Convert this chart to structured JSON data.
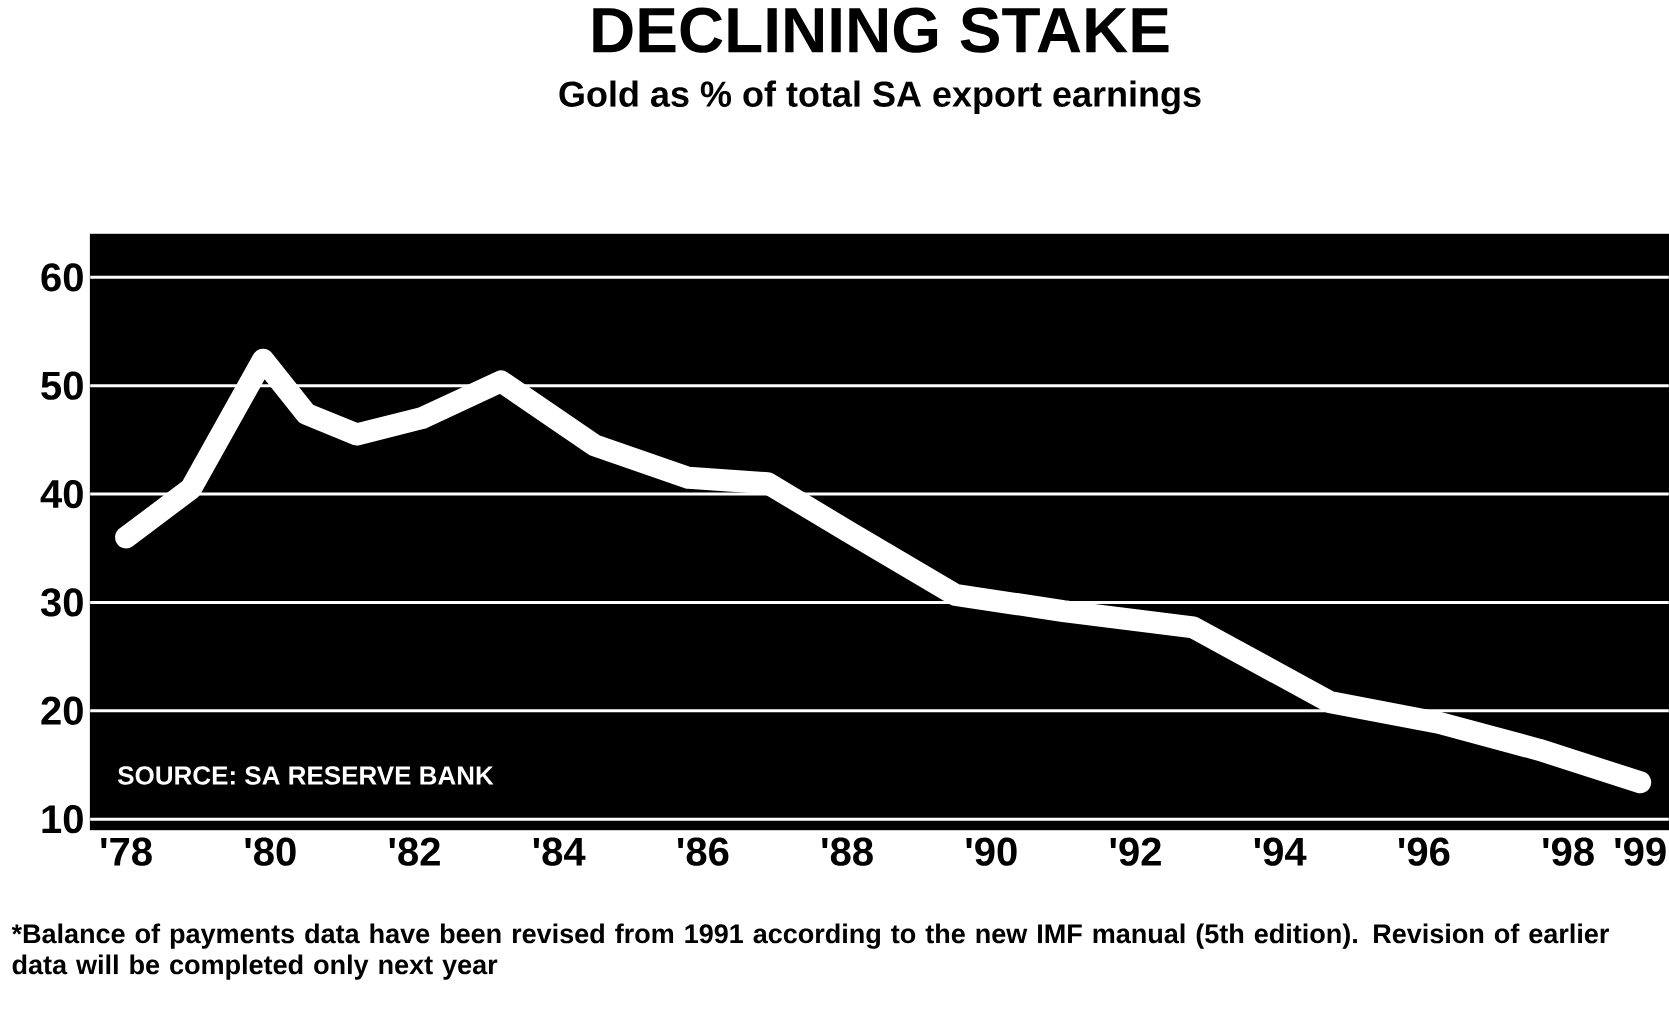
{
  "chart_data": {
    "type": "line",
    "title": "DECLINING STAKE",
    "subtitle": "Gold as % of total SA export earnings",
    "x": [
      1978,
      1978.9,
      1979.9,
      1980.5,
      1981.2,
      1982.1,
      1983.2,
      1984.5,
      1985.8,
      1986.9,
      1988,
      1989.5,
      1991,
      1992.8,
      1994.7,
      1996.2,
      1997.6,
      1999
    ],
    "series": [
      {
        "color": "#ffffff",
        "values": [
          36,
          40.5,
          52.4,
          47.4,
          45.5,
          47,
          50.4,
          44.5,
          41.5,
          41,
          36.6,
          30.7,
          29.2,
          27.7,
          20.8,
          18.9,
          16.4,
          13.4
        ]
      }
    ],
    "xlim": [
      1977.5,
      1999.4
    ],
    "ylim": [
      9,
      64
    ],
    "xticks": [
      {
        "value": 1978,
        "label": "'78"
      },
      {
        "value": 1980,
        "label": "'80"
      },
      {
        "value": 1982,
        "label": "'82"
      },
      {
        "value": 1984,
        "label": "'84"
      },
      {
        "value": 1986,
        "label": "'86"
      },
      {
        "value": 1988,
        "label": "'88"
      },
      {
        "value": 1990,
        "label": "'90"
      },
      {
        "value": 1992,
        "label": "'92"
      },
      {
        "value": 1994,
        "label": "'94"
      },
      {
        "value": 1996,
        "label": "'96"
      },
      {
        "value": 1998,
        "label": "'98"
      },
      {
        "value": 1999,
        "label": "'99"
      }
    ],
    "yticks": [
      10,
      20,
      30,
      40,
      50,
      60
    ],
    "grid": "y",
    "line_style": "solid",
    "annotations": [
      "SOURCE: SA RESERVE BANK",
      "*Balance of payments data have been revised from 1991 according to the new IMF manual (5th edition). Revision of earlier data will be completed only next year"
    ]
  }
}
